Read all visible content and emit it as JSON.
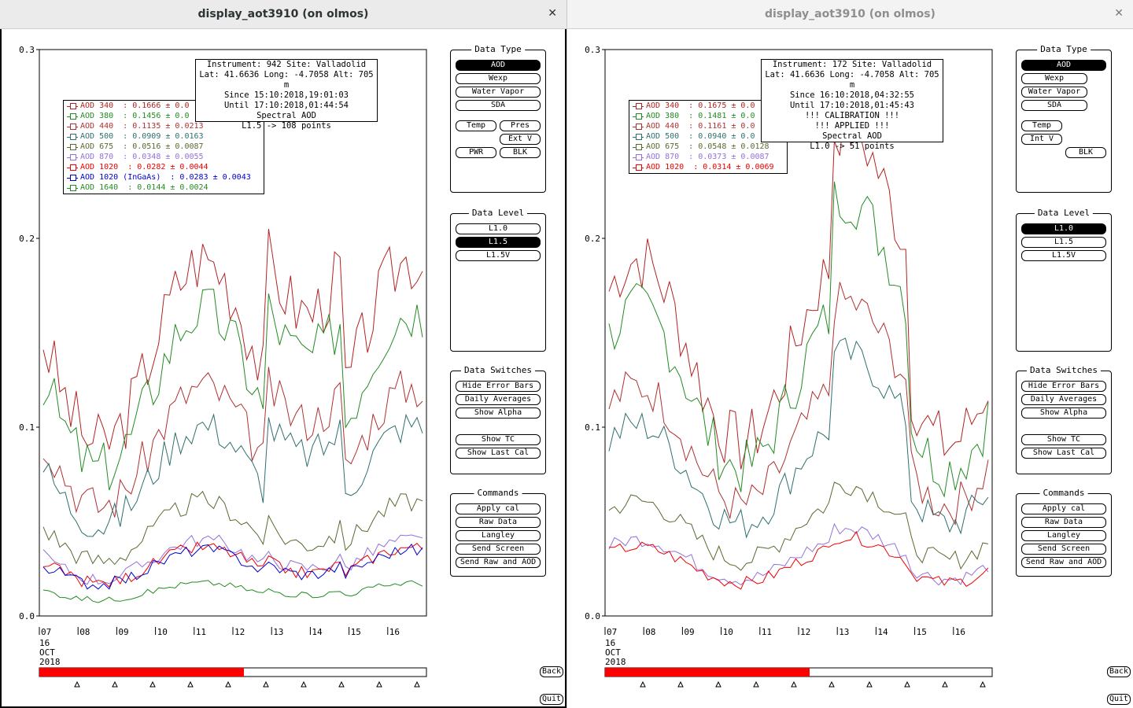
{
  "windows": [
    {
      "title": "display_aot3910 (on olmos)",
      "close": "✕",
      "info": [
        "Instrument: 942 Site: Valladolid",
        "Lat: 41.6636 Long: -4.7058 Alt: 705 m",
        "Since 15:10:2018,19:01:03",
        "Until 17:10:2018,01:44:54",
        "Spectral AOD",
        "L1.5 -> 108 points"
      ],
      "legend": [
        {
          "label": "AOD 340  : 0.1666 ± 0.0",
          "color": "#b22222"
        },
        {
          "label": "AOD 380  : 0.1456 ± 0.0",
          "color": "#228b22"
        },
        {
          "label": "AOD 440  : 0.1135 ± 0.0213",
          "color": "#b03030"
        },
        {
          "label": "AOD 500  : 0.0909 ± 0.0163",
          "color": "#2f6f6f"
        },
        {
          "label": "AOD 675  : 0.0516 ± 0.0087",
          "color": "#556b2f"
        },
        {
          "label": "AOD 870  : 0.0348 ± 0.0055",
          "color": "#9370db"
        },
        {
          "label": "AOD 1020  : 0.0282 ± 0.0044",
          "color": "#ee0000"
        },
        {
          "label": "AOD 1020 (InGaAs)  : 0.0283 ± 0.0043",
          "color": "#0000cd"
        },
        {
          "label": "AOD 1640  : 0.0144 ± 0.0024",
          "color": "#228b22"
        }
      ],
      "data_level_selected": "L1.5"
    },
    {
      "title": "display_aot3910 (on olmos)",
      "close": "✕",
      "info": [
        "Instrument: 172 Site: Valladolid",
        "Lat: 41.6636 Long: -4.7058 Alt: 705 m",
        "Since 16:10:2018,04:32:55",
        "Until 17:10:2018,01:45:43",
        "!!! CALIBRATION !!!",
        "!!!   APPLIED   !!!",
        "Spectral AOD",
        "L1.0 -> 51 points"
      ],
      "legend": [
        {
          "label": "AOD 340  : 0.1675 ± 0.0",
          "color": "#b22222"
        },
        {
          "label": "AOD 380  : 0.1481 ± 0.0",
          "color": "#228b22"
        },
        {
          "label": "AOD 440  : 0.1161 ± 0.0",
          "color": "#b03030"
        },
        {
          "label": "AOD 500  : 0.0940 ± 0.0",
          "color": "#2f6f6f"
        },
        {
          "label": "AOD 675  : 0.0548 ± 0.0128",
          "color": "#556b2f"
        },
        {
          "label": "AOD 870  : 0.0373 ± 0.0087",
          "color": "#9370db"
        },
        {
          "label": "AOD 1020  : 0.0314 ± 0.0069",
          "color": "#ee0000"
        }
      ],
      "data_level_selected": "L1.0"
    }
  ],
  "axis": {
    "y_ticks": [
      "0.3",
      "0.2",
      "0.1",
      "0.0"
    ],
    "x_ticks": [
      "07",
      "08",
      "09",
      "10",
      "11",
      "12",
      "13",
      "14",
      "15",
      "16"
    ],
    "date_lines": [
      "16",
      "OCT",
      "2018"
    ]
  },
  "panels": {
    "data_type": {
      "title": "Data Type",
      "buttons": [
        "AOD",
        "Wexp",
        "Water Vapor",
        "SDA",
        "Temp",
        "Pres",
        "Ext V",
        "PWR",
        "BLK"
      ]
    },
    "data_type_right": {
      "buttons": [
        "AOD",
        "Wexp",
        "Water Vapor",
        "SDA",
        "Temp",
        "Int V",
        "BLK"
      ]
    },
    "data_level": {
      "title": "Data Level",
      "buttons": [
        "L1.0",
        "L1.5",
        "L1.5V"
      ]
    },
    "data_switches": {
      "title": "Data Switches",
      "buttons": [
        "Hide Error Bars",
        "Daily Averages",
        "Show Alpha",
        "Show TC",
        "Show Last Cal"
      ]
    },
    "commands": {
      "title": "Commands",
      "buttons": [
        "Apply cal",
        "Raw Data",
        "Langley",
        "Send Screen",
        "Send Raw and AOD"
      ]
    }
  },
  "back_label": "Back",
  "quit_label": "Quit",
  "colors": {
    "accent_red": "#ff0000",
    "selected": "#000000"
  }
}
